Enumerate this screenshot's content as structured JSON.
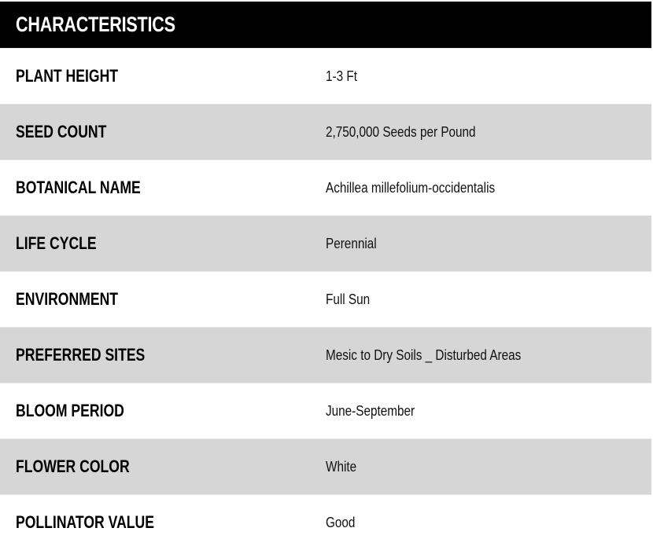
{
  "title": "CHARACTERISTICS",
  "rows": [
    {
      "label": "PLANT HEIGHT",
      "value": "1-3 Ft"
    },
    {
      "label": "SEED COUNT",
      "value": "2,750,000 Seeds per Pound"
    },
    {
      "label": "BOTANICAL NAME",
      "value": "Achillea millefolium-occidentalis"
    },
    {
      "label": "LIFE CYCLE",
      "value": "Perennial"
    },
    {
      "label": "ENVIRONMENT",
      "value": "Full Sun"
    },
    {
      "label": "PREFERRED SITES",
      "value": "Mesic to Dry Soils _ Disturbed Areas"
    },
    {
      "label": "BLOOM PERIOD",
      "value": "June-September"
    },
    {
      "label": "FLOWER COLOR",
      "value": "White"
    },
    {
      "label": "POLLINATOR VALUE",
      "value": "Good"
    }
  ]
}
